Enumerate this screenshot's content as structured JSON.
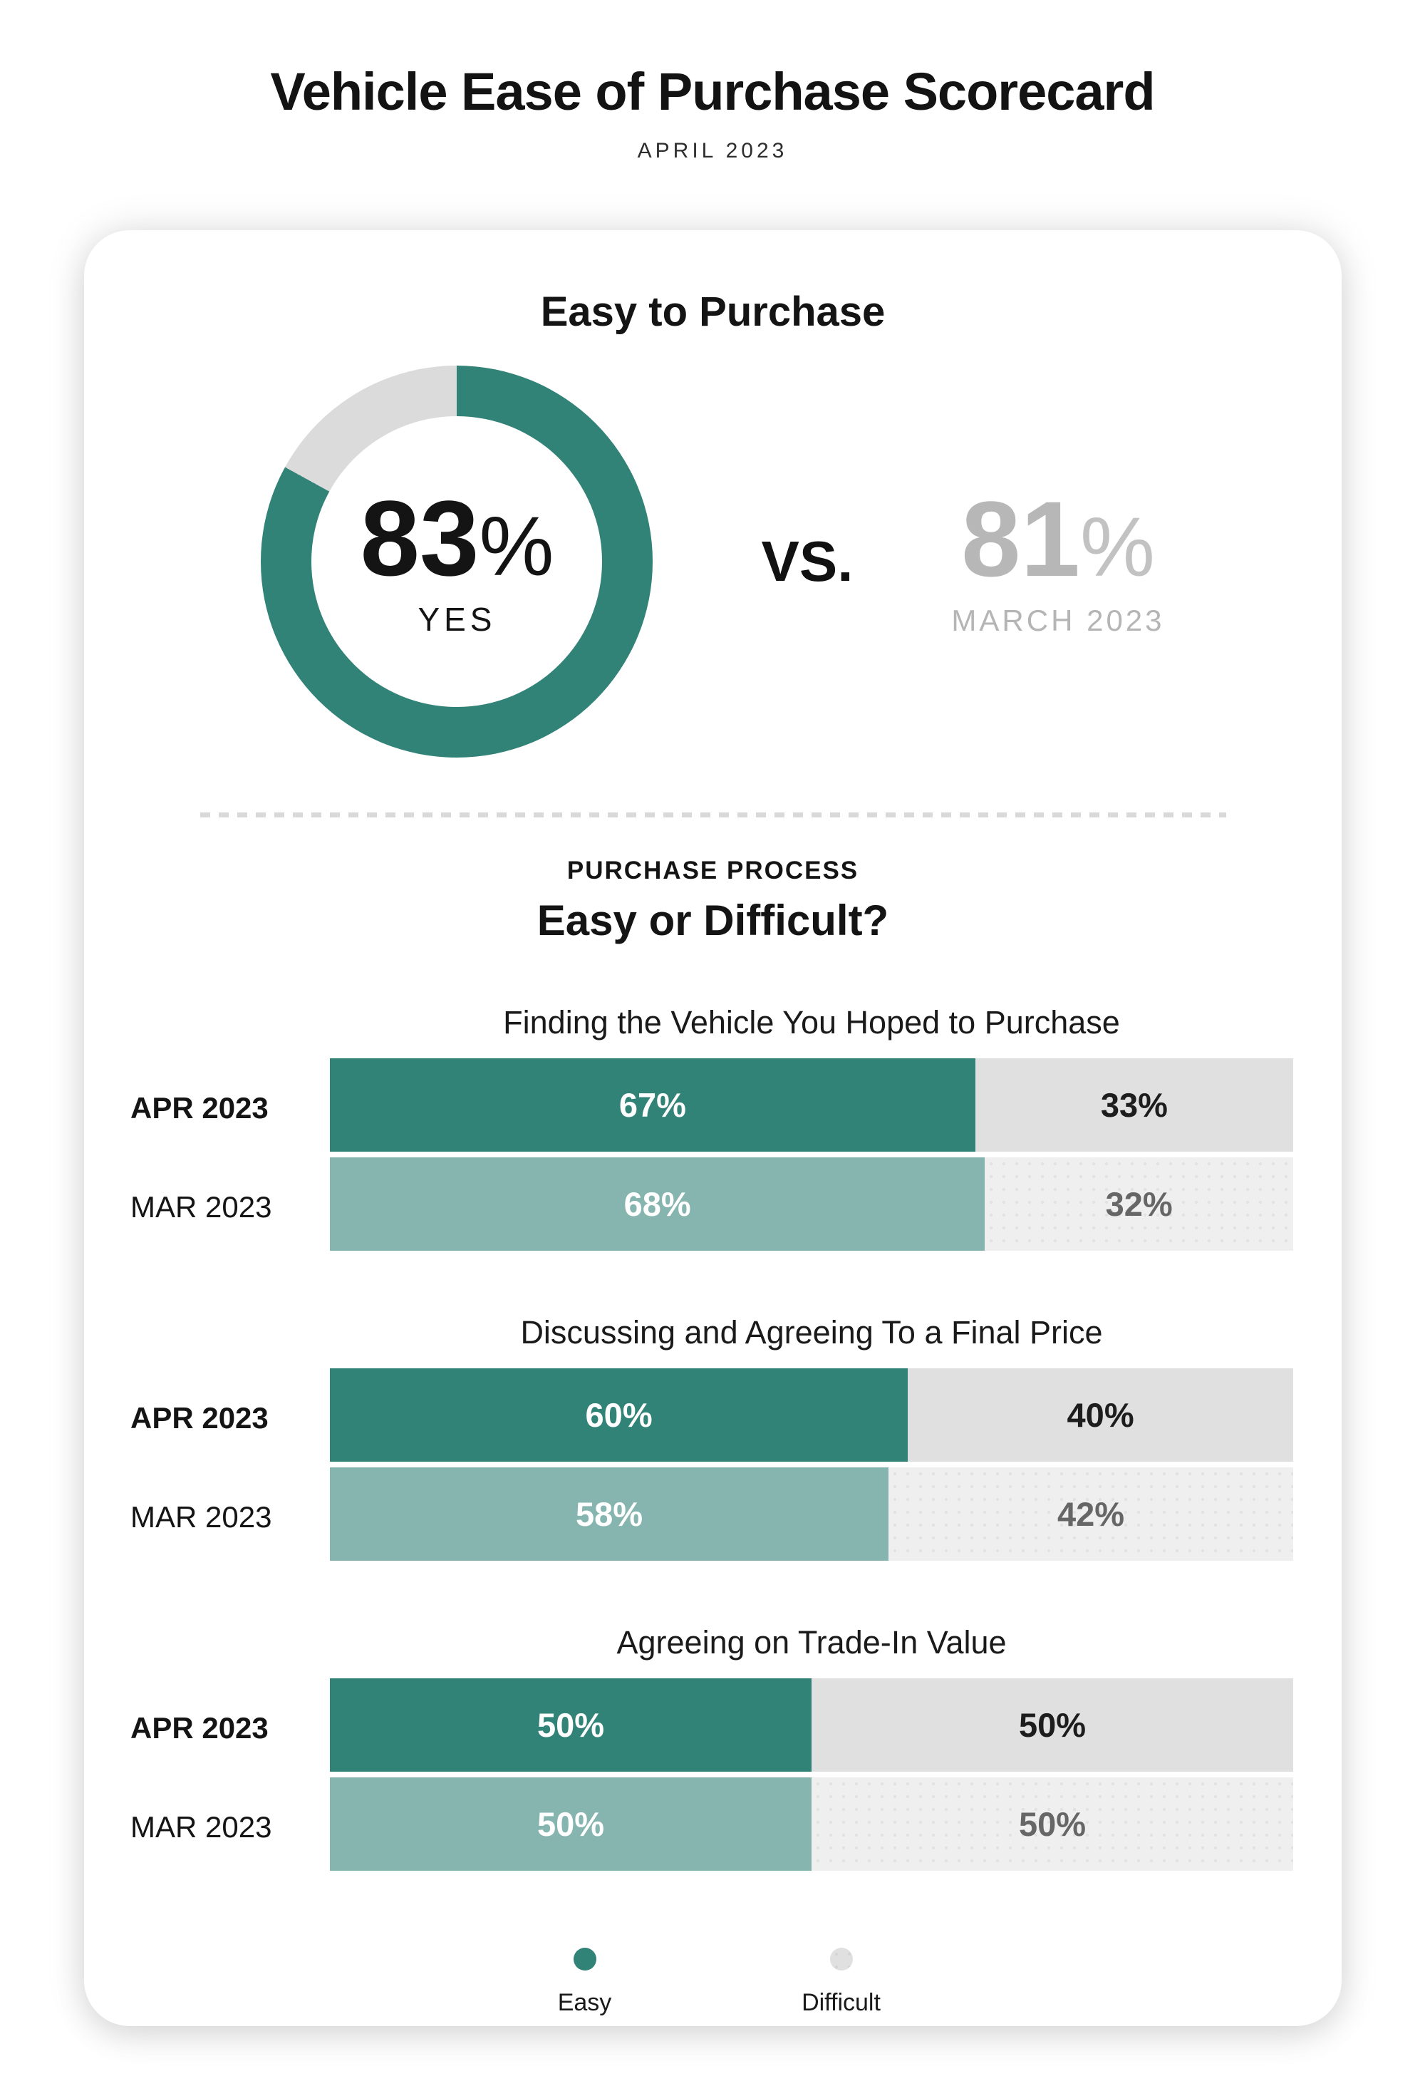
{
  "colors": {
    "teal": "#318277",
    "teal_light": "#85B5AE",
    "gray_bar": "#E0E0E0",
    "gray_bar_light": "#EFEFEF",
    "donut_gray": "#DBDBDB"
  },
  "page": {
    "title": "Vehicle Ease of Purchase Scorecard",
    "subtitle": "APRIL 2023"
  },
  "chart_data": {
    "type": "bar",
    "title": "Vehicle Ease of Purchase Scorecard",
    "subtitle": "APRIL 2023",
    "easy_to_purchase": {
      "heading": "Easy to Purchase",
      "type": "donut",
      "current": {
        "value": 83,
        "label": "83",
        "unit": "%",
        "caption": "YES"
      },
      "vs_label": "VS.",
      "previous": {
        "value": 81,
        "label": "81",
        "unit": "%",
        "caption": "MARCH 2023"
      }
    },
    "process": {
      "kicker": "PURCHASE PROCESS",
      "heading": "Easy or Difficult?",
      "categories": [
        "APR 2023",
        "MAR 2023"
      ],
      "series_names": [
        "Easy",
        "Difficult"
      ],
      "sections": [
        {
          "title": "Finding the Vehicle You Hoped to Purchase",
          "rows": [
            {
              "period": "APR 2023",
              "easy": 67,
              "difficult": 33,
              "easy_label": "67%",
              "difficult_label": "33%"
            },
            {
              "period": "MAR 2023",
              "easy": 68,
              "difficult": 32,
              "easy_label": "68%",
              "difficult_label": "32%"
            }
          ]
        },
        {
          "title": "Discussing and Agreeing To a Final Price",
          "rows": [
            {
              "period": "APR 2023",
              "easy": 60,
              "difficult": 40,
              "easy_label": "60%",
              "difficult_label": "40%"
            },
            {
              "period": "MAR 2023",
              "easy": 58,
              "difficult": 42,
              "easy_label": "58%",
              "difficult_label": "42%"
            }
          ]
        },
        {
          "title": "Agreeing on Trade-In Value",
          "rows": [
            {
              "period": "APR 2023",
              "easy": 50,
              "difficult": 50,
              "easy_label": "50%",
              "difficult_label": "50%"
            },
            {
              "period": "MAR 2023",
              "easy": 50,
              "difficult": 50,
              "easy_label": "50%",
              "difficult_label": "50%"
            }
          ]
        }
      ],
      "legend": [
        {
          "label": "Easy",
          "color": "#318277"
        },
        {
          "label": "Difficult",
          "color": "#E0E0E0"
        }
      ]
    }
  }
}
